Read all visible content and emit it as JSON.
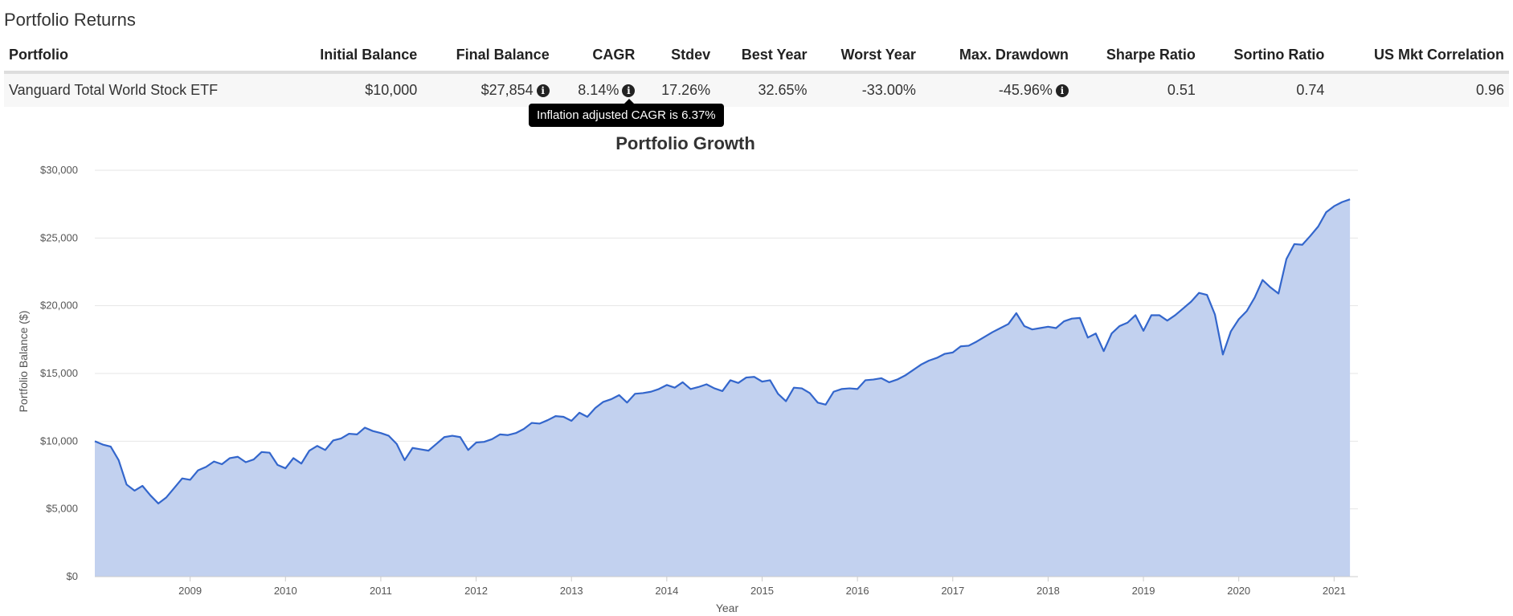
{
  "section": {
    "title": "Portfolio Returns"
  },
  "table": {
    "headers": [
      "Portfolio",
      "Initial Balance",
      "Final Balance",
      "CAGR",
      "Stdev",
      "Best Year",
      "Worst Year",
      "Max. Drawdown",
      "Sharpe Ratio",
      "Sortino Ratio",
      "US Mkt Correlation"
    ],
    "row": {
      "portfolio": "Vanguard Total World Stock ETF",
      "initial_balance": "$10,000",
      "final_balance": "$27,854",
      "cagr": "8.14%",
      "stdev": "17.26%",
      "best_year": "32.65%",
      "worst_year": "-33.00%",
      "max_drawdown": "-45.96%",
      "sharpe_ratio": "0.51",
      "sortino_ratio": "0.74",
      "us_mkt_correlation": "0.96"
    },
    "info_icon": "info-circle-icon",
    "info_glyph": "i"
  },
  "tooltip": {
    "text": "Inflation adjusted CAGR is 6.37%"
  },
  "chart_data": {
    "type": "area",
    "title": "Portfolio Growth",
    "xlabel": "Year",
    "ylabel": "Portfolio Balance ($)",
    "xlim": [
      2008.5,
      2021.75
    ],
    "ylim": [
      0,
      30000
    ],
    "x_ticks": [
      "2009",
      "2010",
      "2011",
      "2012",
      "2013",
      "2014",
      "2015",
      "2016",
      "2017",
      "2018",
      "2019",
      "2020",
      "2021"
    ],
    "y_ticks": [
      "$0",
      "$5,000",
      "$10,000",
      "$15,000",
      "$20,000",
      "$25,000",
      "$30,000"
    ],
    "grid": true,
    "legend": "none",
    "colors": {
      "line": "#3366cc",
      "fill": "#c2d1ef"
    },
    "series": [
      {
        "start": "2008-07",
        "frequency": "monthly",
        "values": [
          10000,
          9750,
          9600,
          8600,
          6800,
          6350,
          6700,
          6000,
          5400,
          5850,
          6550,
          7250,
          7150,
          7850,
          8100,
          8500,
          8300,
          8750,
          8850,
          8450,
          8650,
          9200,
          9150,
          8250,
          8000,
          8750,
          8350,
          9300,
          9650,
          9350,
          10050,
          10200,
          10550,
          10500,
          11000,
          10750,
          10600,
          10400,
          9800,
          8600,
          9500,
          9400,
          9300,
          9800,
          10300,
          10400,
          10300,
          9350,
          9900,
          9950,
          10150,
          10500,
          10450,
          10600,
          10900,
          11350,
          11300,
          11550,
          11850,
          11800,
          11500,
          12100,
          11800,
          12450,
          12900,
          13100,
          13400,
          12850,
          13500,
          13550,
          13650,
          13850,
          14150,
          13950,
          14350,
          13850,
          14000,
          14200,
          13900,
          13700,
          14500,
          14300,
          14700,
          14750,
          14400,
          14500,
          13500,
          12950,
          13950,
          13900,
          13550,
          12850,
          12700,
          13650,
          13850,
          13900,
          13850,
          14500,
          14550,
          14650,
          14350,
          14550,
          14850,
          15250,
          15650,
          15950,
          16150,
          16450,
          16550,
          17000,
          17050,
          17350,
          17700,
          18050,
          18350,
          18650,
          19450,
          18500,
          18250,
          18350,
          18450,
          18350,
          18850,
          19050,
          19100,
          17650,
          17950,
          16650,
          17950,
          18500,
          18750,
          19300,
          18150,
          19300,
          19300,
          18900,
          19300,
          19800,
          20300,
          20950,
          20800,
          19350,
          16400,
          18100,
          19000,
          19600,
          20600,
          21900,
          21350,
          20900,
          23450,
          24550,
          24500,
          25150,
          25850,
          26900,
          27350,
          27650,
          27854
        ]
      }
    ]
  }
}
